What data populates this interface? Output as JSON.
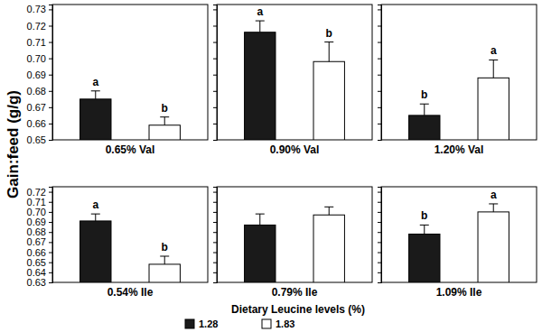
{
  "chart_data": [
    {
      "type": "bar",
      "y_label": "Gain:feed (g/g)",
      "legend_title": "Dietary Leucine levels (%)",
      "x_label": "0.65% Val",
      "categories": [
        null
      ],
      "series": [
        {
          "name": "1.28",
          "color": "#1a1a1a",
          "values": [
            0.675
          ],
          "errors": [
            0.005
          ],
          "letters": [
            "a"
          ]
        },
        {
          "name": "1.83",
          "color": "#ffffff",
          "values": [
            0.659
          ],
          "errors": [
            0.005
          ],
          "letters": [
            "b"
          ]
        }
      ],
      "ylim": [
        0.65,
        0.733
      ],
      "yticks": [
        0.65,
        0.66,
        0.67,
        0.68,
        0.69,
        {
          "value": 0.7,
          "label": "0.70"
        },
        0.71,
        0.72,
        0.73
      ],
      "tick_labels": "y"
    },
    {
      "type": "bar",
      "x_label": "0.90% Val",
      "categories": [
        null
      ],
      "series": [
        {
          "name": "1.28",
          "color": "#1a1a1a",
          "values": [
            0.716
          ],
          "errors": [
            0.007
          ],
          "letters": [
            "a"
          ]
        },
        {
          "name": "1.83",
          "color": "#ffffff",
          "values": [
            0.698
          ],
          "errors": [
            0.012
          ],
          "letters": [
            "b"
          ]
        }
      ],
      "ylim": [
        0.65,
        0.733
      ],
      "yticks": [
        0.65,
        0.66,
        0.67,
        0.68,
        0.69,
        0.7,
        0.71,
        0.72,
        0.73
      ],
      "tick_labels": false
    },
    {
      "type": "bar",
      "x_label": "1.20% Val",
      "categories": [
        null
      ],
      "series": [
        {
          "name": "1.28",
          "color": "#1a1a1a",
          "values": [
            0.665
          ],
          "errors": [
            0.007
          ],
          "letters": [
            "b"
          ]
        },
        {
          "name": "1.83",
          "color": "#ffffff",
          "values": [
            0.688
          ],
          "errors": [
            0.011
          ],
          "letters": [
            "a"
          ]
        }
      ],
      "ylim": [
        0.65,
        0.733
      ],
      "yticks": [
        0.65,
        0.66,
        0.67,
        0.68,
        0.69,
        0.7,
        0.71,
        0.72,
        0.73
      ],
      "tick_labels": false
    },
    {
      "type": "bar",
      "x_label": "0.54% Ile",
      "categories": [
        null
      ],
      "series": [
        {
          "name": "1.28",
          "color": "#1a1a1a",
          "values": [
            0.691
          ],
          "errors": [
            0.007
          ],
          "letters": [
            "a"
          ]
        },
        {
          "name": "1.83",
          "color": "#ffffff",
          "values": [
            0.648
          ],
          "errors": [
            0.008
          ],
          "letters": [
            "b"
          ]
        }
      ],
      "ylim": [
        0.63,
        0.725
      ],
      "yticks": [
        0.63,
        0.64,
        0.65,
        0.66,
        0.67,
        0.68,
        0.69,
        {
          "value": 0.7,
          "label": "0.70"
        },
        0.71,
        0.72
      ],
      "tick_labels": "y"
    },
    {
      "type": "bar",
      "x_label": "0.79% Ile",
      "categories": [
        null
      ],
      "series": [
        {
          "name": "1.28",
          "color": "#1a1a1a",
          "values": [
            0.687
          ],
          "errors": [
            0.011
          ]
        },
        {
          "name": "1.83",
          "color": "#ffffff",
          "values": [
            0.697
          ],
          "errors": [
            0.008
          ]
        }
      ],
      "ylim": [
        0.63,
        0.725
      ],
      "yticks": [
        0.63,
        0.64,
        0.65,
        0.66,
        0.67,
        0.68,
        0.69,
        0.7,
        0.71,
        0.72
      ],
      "tick_labels": false
    },
    {
      "type": "bar",
      "x_label": "1.09% Ile",
      "categories": [
        null
      ],
      "series": [
        {
          "name": "1.28",
          "color": "#1a1a1a",
          "values": [
            0.678
          ],
          "errors": [
            0.009
          ],
          "letters": [
            "b"
          ]
        },
        {
          "name": "1.83",
          "color": "#ffffff",
          "values": [
            0.7
          ],
          "errors": [
            0.008
          ],
          "letters": [
            "a"
          ]
        }
      ],
      "ylim": [
        0.63,
        0.725
      ],
      "yticks": [
        0.63,
        0.64,
        0.65,
        0.66,
        0.67,
        0.68,
        0.69,
        0.7,
        0.71,
        0.72
      ],
      "tick_labels": false
    }
  ]
}
